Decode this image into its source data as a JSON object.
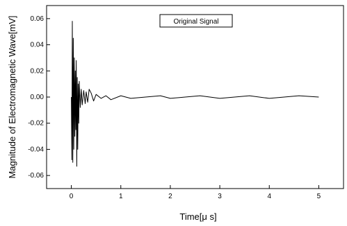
{
  "chart_data": {
    "type": "line",
    "xlabel": "Time[μ s]",
    "ylabel": "Magnitude of Electromagnetic Wave[mV]",
    "xlim": [
      -0.5,
      5.5
    ],
    "ylim": [
      -0.07,
      0.07
    ],
    "x_ticks": [
      0,
      1,
      2,
      3,
      4,
      5
    ],
    "y_ticks": [
      -0.06,
      -0.04,
      -0.02,
      0.0,
      0.02,
      0.04,
      0.06
    ],
    "x_tick_labels": [
      "0",
      "1",
      "2",
      "3",
      "4",
      "5"
    ],
    "y_tick_labels": [
      "-0.06",
      "-0.04",
      "-0.02",
      "0.00",
      "0.02",
      "0.04",
      "0.06"
    ],
    "grid": false,
    "legend_position": "top-center",
    "series": [
      {
        "name": "Original Signal",
        "color": "#000000",
        "x": [
          0.0,
          0.01,
          0.02,
          0.03,
          0.04,
          0.05,
          0.06,
          0.07,
          0.08,
          0.09,
          0.1,
          0.11,
          0.12,
          0.13,
          0.14,
          0.15,
          0.16,
          0.18,
          0.2,
          0.22,
          0.25,
          0.28,
          0.3,
          0.33,
          0.36,
          0.4,
          0.45,
          0.5,
          0.6,
          0.7,
          0.8,
          1.0,
          1.2,
          1.5,
          1.8,
          2.0,
          2.3,
          2.6,
          3.0,
          3.3,
          3.6,
          4.0,
          4.3,
          4.6,
          5.0
        ],
        "values": [
          0.0,
          -0.048,
          0.058,
          -0.05,
          0.045,
          -0.04,
          0.03,
          -0.03,
          0.02,
          -0.025,
          0.028,
          -0.053,
          0.015,
          -0.04,
          0.01,
          -0.02,
          0.012,
          -0.008,
          0.006,
          -0.006,
          0.005,
          -0.005,
          0.004,
          -0.004,
          0.006,
          0.003,
          -0.003,
          0.002,
          -0.001,
          0.001,
          -0.002,
          0.001,
          -0.001,
          0.0,
          0.001,
          -0.001,
          0.0,
          0.001,
          -0.001,
          0.0,
          0.001,
          -0.001,
          0.0,
          0.001,
          0.0
        ]
      }
    ]
  }
}
